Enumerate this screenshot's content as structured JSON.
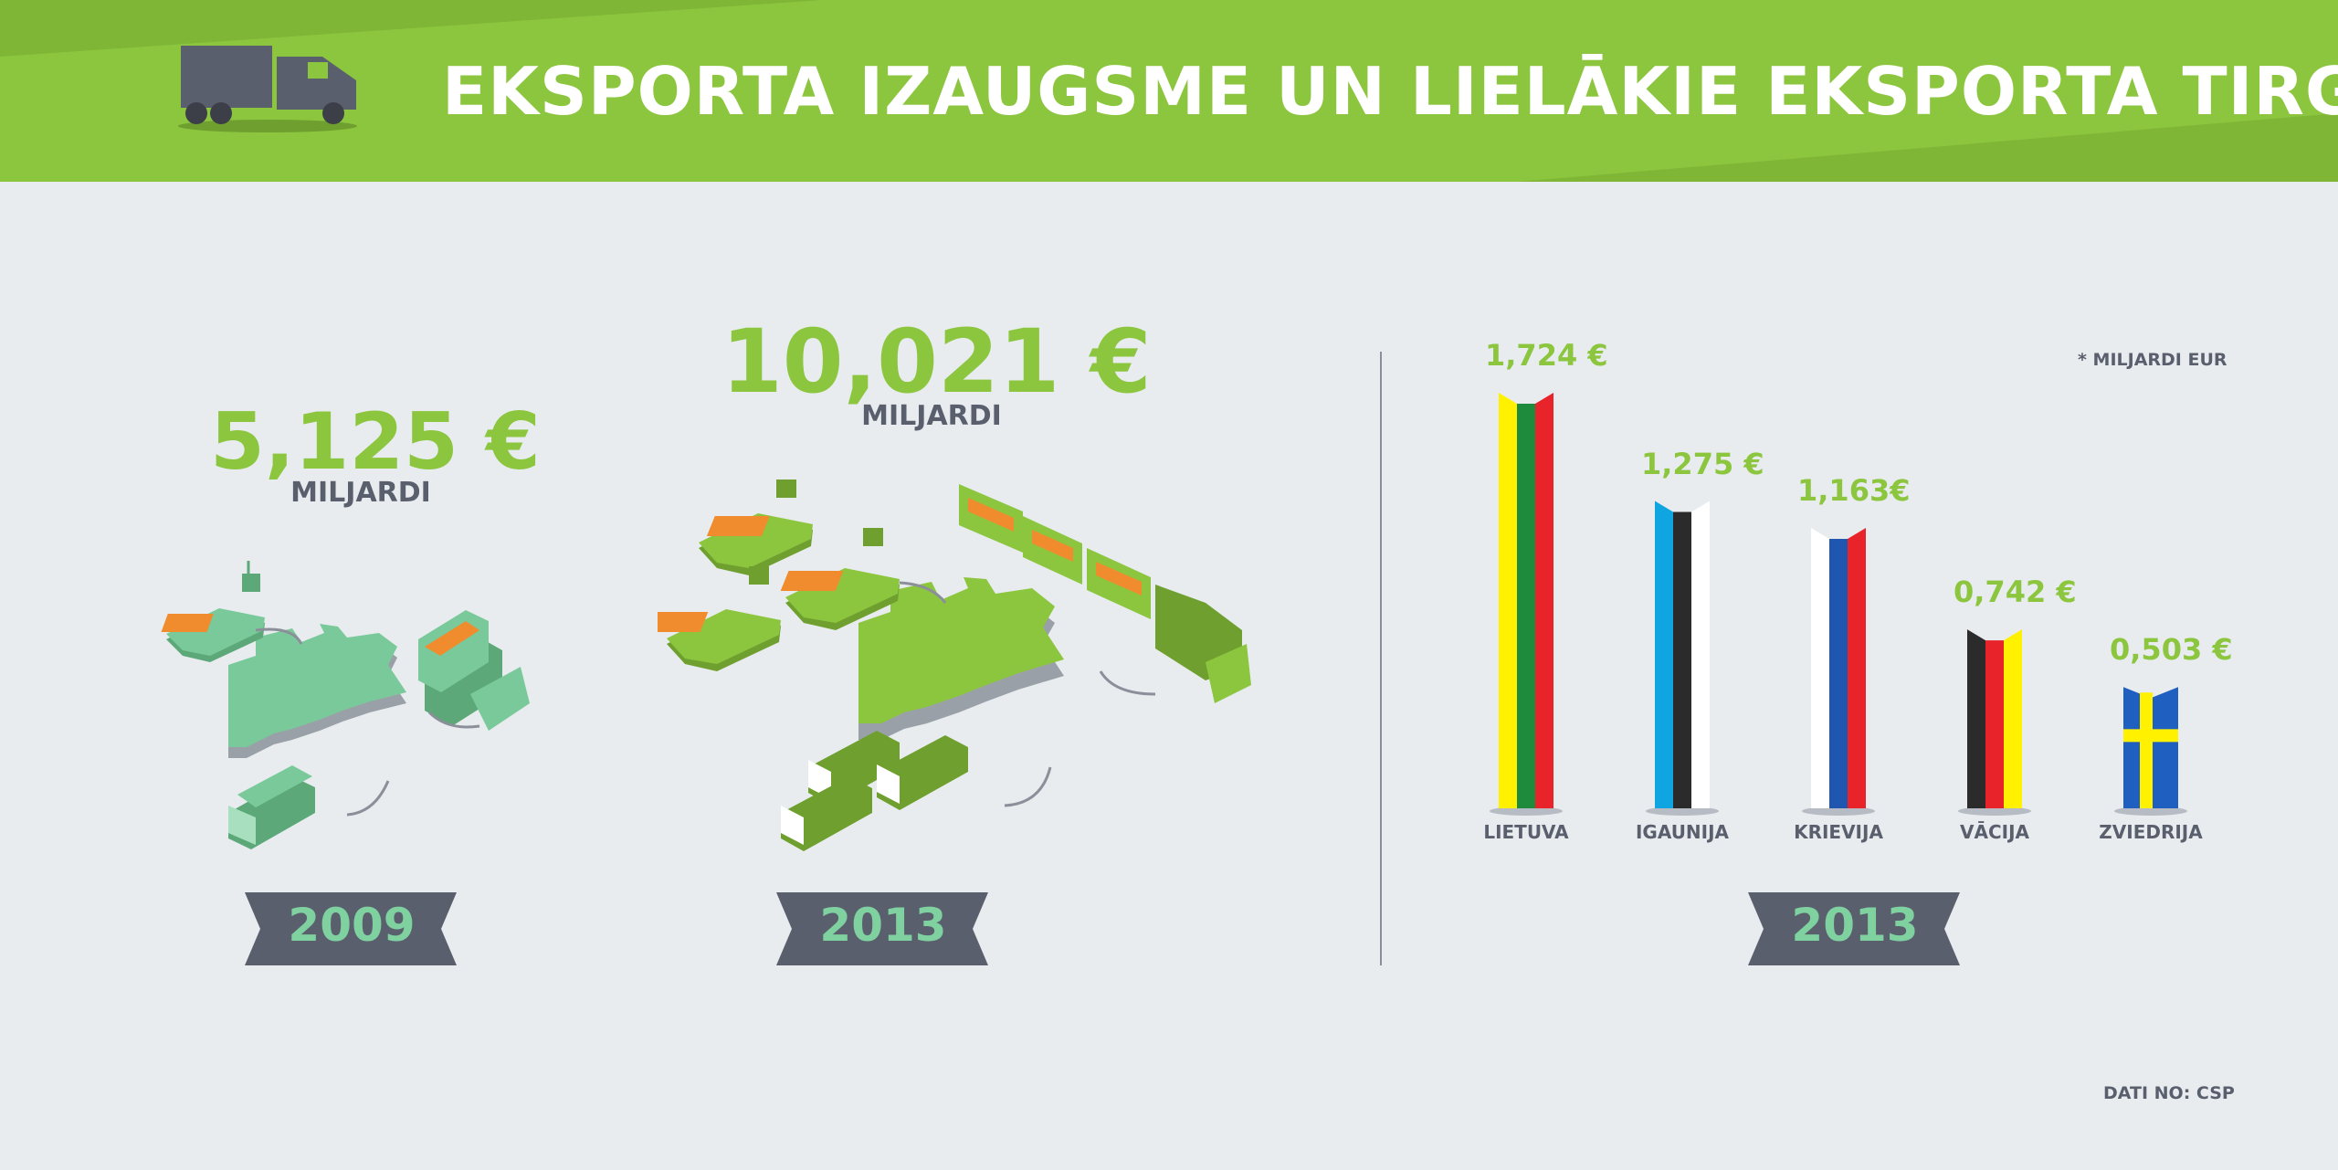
{
  "header": {
    "title": "EKSPORTA IZAUGSME UN LIELĀKIE EKSPORTA TIRGI"
  },
  "left": {
    "y2009": {
      "amount": "5,125 €",
      "unit": "MILJARDI",
      "year": "2009"
    },
    "y2013": {
      "amount": "10,021 €",
      "unit": "MILJARDI",
      "year": "2013"
    }
  },
  "right": {
    "note": "* MILJARDI EUR",
    "year": "2013",
    "source": "DATI NO: CSP"
  },
  "colors": {
    "brand_green": "#8cc63f",
    "dark_gray": "#5a5f6e",
    "mint": "#7fd1a0",
    "background": "#e8ecef"
  },
  "chart_data": {
    "type": "bar",
    "categories": [
      "LIETUVA",
      "IGAUNIJA",
      "KRIEVIJA",
      "VĀCIJA",
      "ZVIEDRIJA"
    ],
    "values": [
      1.724,
      1.275,
      1.163,
      0.742,
      0.503
    ],
    "value_labels": [
      "1,724 €",
      "1,275 €",
      "1,163€",
      "0,742 €",
      "0,503 €"
    ],
    "bar_flag_colors": [
      [
        "#fff100",
        "#1e8a3c",
        "#e8232a"
      ],
      [
        "#0ea5e0",
        "#2b2b2b",
        "#ffffff"
      ],
      [
        "#ffffff",
        "#1e56b0",
        "#e8232a"
      ],
      [
        "#2b2b2b",
        "#e8232a",
        "#fff100"
      ],
      [
        "#1f5fbf",
        "#fff100",
        "#1f5fbf"
      ]
    ],
    "grid": false
  }
}
